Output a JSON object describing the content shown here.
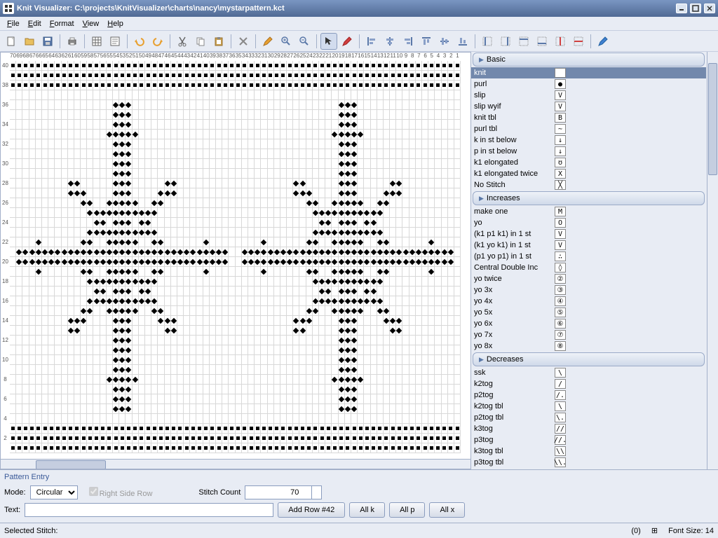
{
  "window": {
    "title": "Knit Visualizer: C:\\projects\\KnitVisualizer\\charts\\nancy\\mystarpattern.kct"
  },
  "menu": [
    "File",
    "Edit",
    "Format",
    "View",
    "Help"
  ],
  "chart": {
    "cols": 70,
    "rows": 40,
    "col_start": 70,
    "row_labels_even_only": true,
    "star_pattern": true
  },
  "stitch_panel": {
    "sections": [
      {
        "name": "Basic",
        "items": [
          {
            "label": "knit",
            "sym": "",
            "selected": true
          },
          {
            "label": "purl",
            "sym": "●"
          },
          {
            "label": "slip",
            "sym": "V"
          },
          {
            "label": "slip wyif",
            "sym": "V"
          },
          {
            "label": "knit tbl",
            "sym": "B"
          },
          {
            "label": "purl tbl",
            "sym": "~"
          },
          {
            "label": "k in st below",
            "sym": "↓"
          },
          {
            "label": "p in st below",
            "sym": "↓"
          },
          {
            "label": "k1 elongated",
            "sym": "ʊ"
          },
          {
            "label": "k1 elongated twice",
            "sym": "X"
          },
          {
            "label": "No Stitch",
            "sym": "╳"
          }
        ]
      },
      {
        "name": "Increases",
        "items": [
          {
            "label": "make one",
            "sym": "M"
          },
          {
            "label": "yo",
            "sym": "O"
          },
          {
            "label": "(k1 p1 k1) in 1 st",
            "sym": "V"
          },
          {
            "label": "(k1 yo k1) in 1 st",
            "sym": "V"
          },
          {
            "label": "(p1 yo p1) in 1 st",
            "sym": "∴"
          },
          {
            "label": "Central Double Inc",
            "sym": "◊"
          },
          {
            "label": "yo twice",
            "sym": "②"
          },
          {
            "label": "yo 3x",
            "sym": "③"
          },
          {
            "label": "yo 4x",
            "sym": "④"
          },
          {
            "label": "yo 5x",
            "sym": "⑤"
          },
          {
            "label": "yo 6x",
            "sym": "⑥"
          },
          {
            "label": "yo 7x",
            "sym": "⑦"
          },
          {
            "label": "yo 8x",
            "sym": "⑧"
          }
        ]
      },
      {
        "name": "Decreases",
        "items": [
          {
            "label": "ssk",
            "sym": "\\"
          },
          {
            "label": "k2tog",
            "sym": "/"
          },
          {
            "label": "p2tog",
            "sym": "/."
          },
          {
            "label": "k2tog tbl",
            "sym": "\\"
          },
          {
            "label": "p2tog tbl",
            "sym": "\\."
          },
          {
            "label": "k3tog",
            "sym": "//"
          },
          {
            "label": "p3tog",
            "sym": "//."
          },
          {
            "label": "k3tog tbl",
            "sym": "\\\\"
          },
          {
            "label": "p3tog tbl",
            "sym": "\\\\."
          }
        ]
      }
    ]
  },
  "pattern_entry": {
    "title": "Pattern Entry",
    "mode_label": "Mode:",
    "mode_value": "Circular",
    "right_side_row": "Right Side Row",
    "stitch_count_label": "Stitch Count",
    "stitch_count_value": "70",
    "text_label": "Text:",
    "add_row_btn": "Add Row #42",
    "all_k": "All k",
    "all_p": "All p",
    "all_x": "All x"
  },
  "status": {
    "selected_stitch": "Selected Stitch:",
    "coord": "(0)",
    "font_size": "Font Size: 14"
  }
}
